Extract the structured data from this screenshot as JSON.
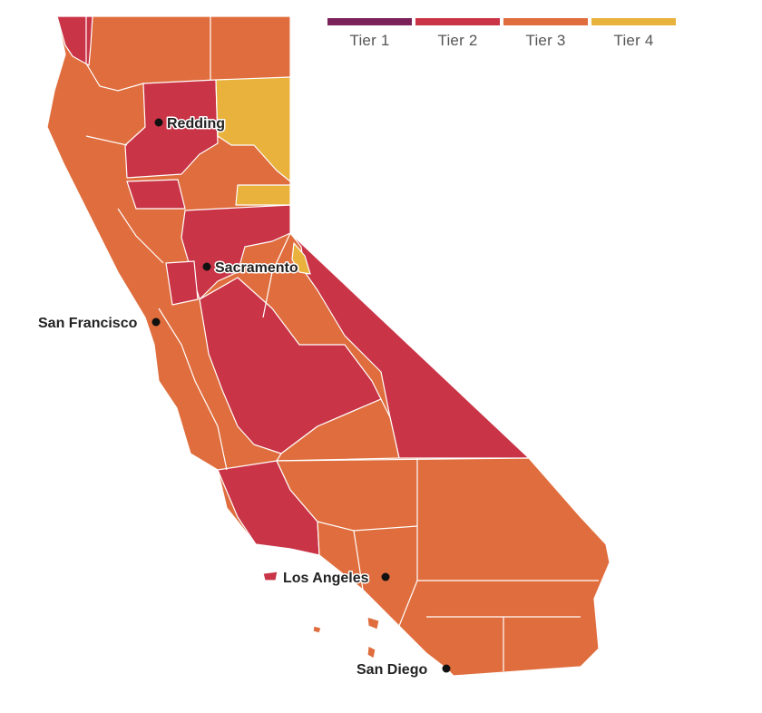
{
  "legend": {
    "tiers": [
      {
        "label": "Tier 1",
        "color": "#7a2159"
      },
      {
        "label": "Tier 2",
        "color": "#c93447"
      },
      {
        "label": "Tier 3",
        "color": "#e06d3d"
      },
      {
        "label": "Tier 4",
        "color": "#e8b23c"
      }
    ]
  },
  "map": {
    "outline_color": "#ffffff",
    "cities": [
      {
        "name": "Redding"
      },
      {
        "name": "Sacramento"
      },
      {
        "name": "San Francisco"
      },
      {
        "name": "Los Angeles"
      },
      {
        "name": "San Diego"
      }
    ]
  }
}
